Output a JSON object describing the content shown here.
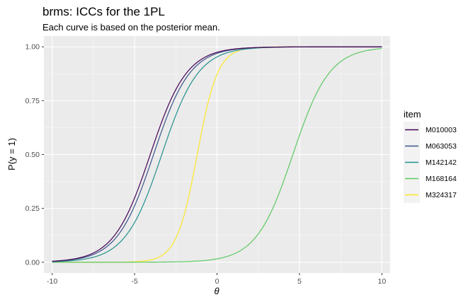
{
  "chart_data": {
    "type": "line",
    "title": "brms: ICCs for the 1PL",
    "subtitle": "Each curve is based on the posterior mean.",
    "xlabel": "θ",
    "ylabel": "P(y = 1)",
    "xlim": [
      -10.5,
      10.5
    ],
    "ylim": [
      -0.05,
      1.05
    ],
    "x_ticks": [
      -10,
      -5,
      0,
      5,
      10
    ],
    "x_tick_labels": [
      "-10",
      "-5",
      "0",
      "5",
      "10"
    ],
    "y_ticks": [
      0,
      0.25,
      0.5,
      0.75,
      1
    ],
    "y_tick_labels": [
      "0.00",
      "0.25",
      "0.50",
      "0.75",
      "1.00"
    ],
    "grid": true,
    "legend": {
      "title": "item",
      "placement": "right"
    },
    "series": [
      {
        "name": "M010003",
        "color": "#440154",
        "difficulty": -4.05,
        "discrimination": 0.9
      },
      {
        "name": "M063053",
        "color": "#3B528B",
        "difficulty": -3.85,
        "discrimination": 0.9
      },
      {
        "name": "M142142",
        "color": "#21908C",
        "difficulty": -3.35,
        "discrimination": 0.9
      },
      {
        "name": "M168164",
        "color": "#5DC863",
        "difficulty": 4.6,
        "discrimination": 0.9
      },
      {
        "name": "M324317",
        "color": "#FDE725",
        "difficulty": -1.2,
        "discrimination": 1.6
      }
    ]
  }
}
